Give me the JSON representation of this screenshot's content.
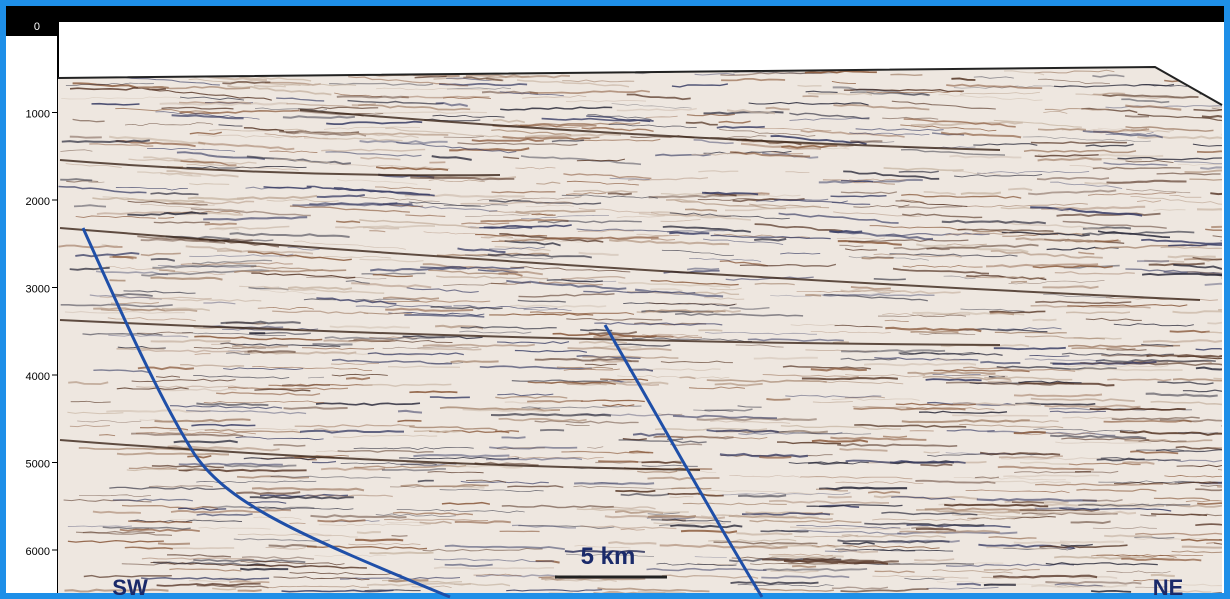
{
  "axis": {
    "left_labels": [
      "0",
      "1000",
      "2000",
      "3000",
      "4000",
      "5000",
      "6000"
    ]
  },
  "annotations": {
    "scale": "5 km",
    "left_direction": "SW",
    "right_direction": "NE"
  }
}
